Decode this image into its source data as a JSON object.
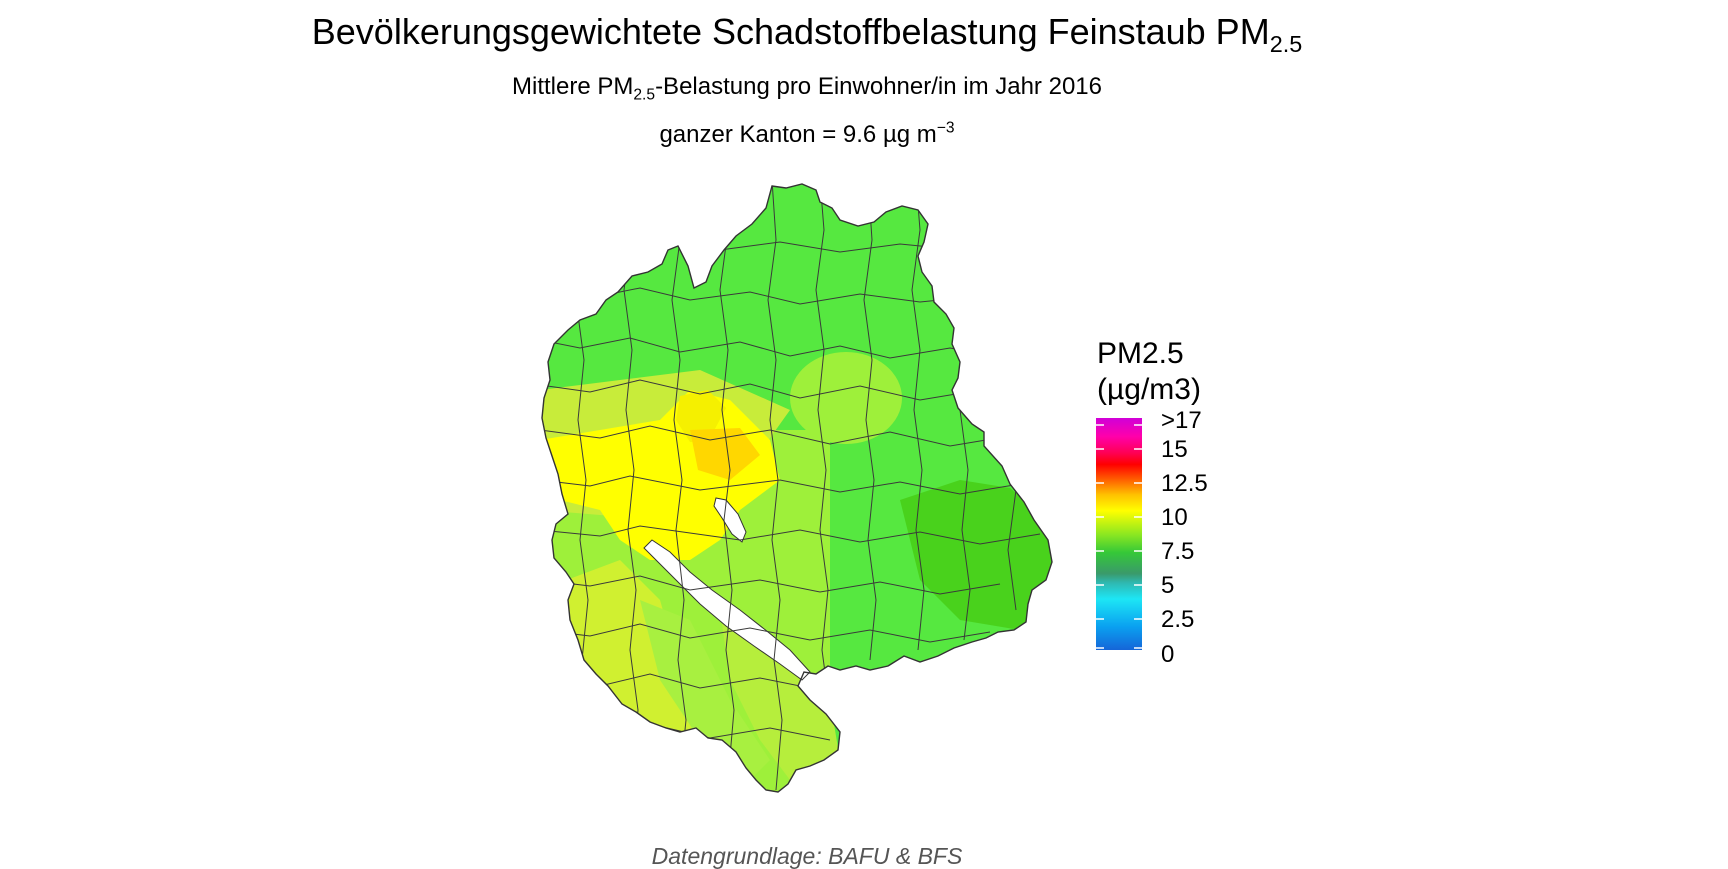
{
  "title": {
    "main": "Bevölkerungsgewichtete Schadstoffbelastung Feinstaub PM",
    "sub": "2.5"
  },
  "subtitle": {
    "pre": "Mittlere PM",
    "sub": "2.5",
    "post": "-Belastung pro Einwohner/in im Jahr 2016"
  },
  "subtitle2": {
    "pre": "ganzer Kanton = 9.6 µg m",
    "sup": "−3"
  },
  "legend": {
    "title_line1": "PM2.5",
    "title_line2": "(µg/m3)",
    "labels": [
      ">17",
      "15",
      "12.5",
      "10",
      "7.5",
      "5",
      "2.5",
      "0"
    ]
  },
  "caption": "Datengrundlage: BAFU & BFS",
  "colors": {
    "yellow": "#ffff00",
    "yellow_green": "#d8f030",
    "light_green": "#9ef03a",
    "green": "#56e840",
    "dark_green": "#49d21c",
    "orange_yellow": "#ffd700",
    "boundary": "#333333"
  }
}
